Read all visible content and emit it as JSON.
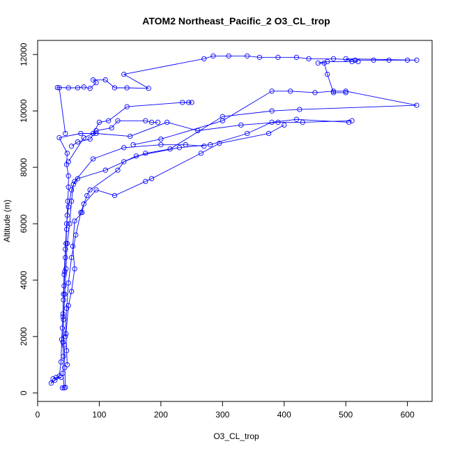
{
  "chart_data": {
    "type": "scatter",
    "title": "ATOM2 Northeast_Pacific_2 O3_CL_trop",
    "xlabel": "O3_CL_trop",
    "ylabel": "Altitude (m)",
    "xlim": [
      0,
      640
    ],
    "ylim": [
      -300,
      12500
    ],
    "xticks": [
      0,
      100,
      200,
      300,
      400,
      500,
      600
    ],
    "yticks": [
      0,
      2000,
      4000,
      6000,
      8000,
      10000,
      12000
    ],
    "grid": false,
    "legend": "none",
    "marker": "open-circle",
    "lines_connect_points": true,
    "series_color": "#0000ff",
    "series": [
      {
        "points": [
          [
            40,
            180
          ],
          [
            43,
            180
          ],
          [
            41,
            700
          ],
          [
            42,
            1300
          ],
          [
            41,
            1800
          ],
          [
            40,
            2300
          ],
          [
            41,
            2800
          ],
          [
            42,
            3300
          ],
          [
            43,
            3800
          ],
          [
            44,
            4300
          ],
          [
            45,
            4800
          ],
          [
            46,
            5300
          ],
          [
            47,
            5800
          ],
          [
            48,
            6300
          ],
          [
            49,
            6800
          ],
          [
            50,
            7300
          ],
          [
            50,
            7700
          ],
          [
            47,
            8100
          ],
          [
            48,
            8500
          ],
          [
            35,
            9050
          ],
          [
            70,
            9200
          ],
          [
            95,
            9200
          ],
          [
            150,
            9100
          ],
          [
            210,
            9600
          ],
          [
            260,
            9300
          ],
          [
            330,
            9500
          ],
          [
            390,
            9600
          ],
          [
            430,
            9600
          ],
          [
            510,
            9650
          ]
        ]
      },
      {
        "points": [
          [
            45,
            200
          ],
          [
            44,
            900
          ],
          [
            43,
            1700
          ],
          [
            42,
            2600
          ],
          [
            44,
            3500
          ],
          [
            46,
            4400
          ],
          [
            48,
            5300
          ],
          [
            52,
            6000
          ],
          [
            55,
            6800
          ],
          [
            58,
            7400
          ],
          [
            65,
            7600
          ],
          [
            110,
            7900
          ],
          [
            160,
            8400
          ],
          [
            230,
            8700
          ],
          [
            280,
            8800
          ],
          [
            340,
            9200
          ],
          [
            380,
            9600
          ],
          [
            420,
            9700
          ],
          [
            505,
            9600
          ]
        ]
      },
      {
        "points": [
          [
            38,
            550
          ],
          [
            30,
            550
          ],
          [
            25,
            500
          ],
          [
            22,
            350
          ],
          [
            28,
            450
          ],
          [
            35,
            600
          ],
          [
            38,
            1100
          ],
          [
            39,
            1900
          ],
          [
            41,
            2700
          ],
          [
            42,
            3500
          ],
          [
            43,
            4200
          ],
          [
            45,
            5100
          ],
          [
            47,
            6000
          ],
          [
            50,
            6600
          ],
          [
            55,
            7200
          ],
          [
            60,
            7500
          ],
          [
            90,
            8300
          ],
          [
            140,
            8700
          ],
          [
            200,
            8800
          ],
          [
            240,
            8800
          ],
          [
            270,
            8750
          ]
        ]
      },
      {
        "points": [
          [
            48,
            1000
          ],
          [
            47,
            1500
          ],
          [
            46,
            2100
          ],
          [
            50,
            3100
          ],
          [
            55,
            3600
          ],
          [
            60,
            4400
          ],
          [
            57,
            5200
          ],
          [
            60,
            6100
          ],
          [
            72,
            6400
          ],
          [
            75,
            6700
          ],
          [
            95,
            7200
          ],
          [
            125,
            7000
          ],
          [
            175,
            7500
          ],
          [
            185,
            7600
          ],
          [
            265,
            8500
          ],
          [
            295,
            8850
          ],
          [
            375,
            9200
          ],
          [
            400,
            9500
          ]
        ]
      },
      {
        "points": [
          [
            45,
            2000
          ],
          [
            47,
            3000
          ],
          [
            50,
            3900
          ],
          [
            55,
            4800
          ],
          [
            62,
            5600
          ],
          [
            70,
            6400
          ],
          [
            80,
            7000
          ],
          [
            85,
            7200
          ],
          [
            130,
            7900
          ],
          [
            140,
            8200
          ],
          [
            175,
            8500
          ],
          [
            215,
            8650
          ],
          [
            300,
            9800
          ],
          [
            380,
            10000
          ],
          [
            425,
            10050
          ],
          [
            615,
            10200
          ],
          [
            500,
            10700
          ],
          [
            480,
            10700
          ],
          [
            450,
            10650
          ],
          [
            410,
            10700
          ],
          [
            380,
            10700
          ],
          [
            300,
            9650
          ],
          [
            200,
            9000
          ],
          [
            155,
            8800
          ]
        ]
      },
      {
        "points": [
          [
            50,
            8200
          ],
          [
            75,
            9050
          ],
          [
            90,
            9200
          ],
          [
            100,
            9600
          ],
          [
            115,
            9650
          ],
          [
            145,
            10150
          ],
          [
            235,
            10300
          ],
          [
            245,
            10300
          ],
          [
            250,
            10300
          ]
        ]
      },
      {
        "points": [
          [
            55,
            8750
          ],
          [
            65,
            8900
          ],
          [
            85,
            9000
          ],
          [
            95,
            9300
          ],
          [
            120,
            9400
          ],
          [
            130,
            9650
          ],
          [
            175,
            9650
          ],
          [
            185,
            9600
          ],
          [
            195,
            9600
          ]
        ]
      },
      {
        "points": [
          [
            45,
            9200
          ],
          [
            35,
            10820
          ],
          [
            32,
            10830
          ],
          [
            50,
            10820
          ],
          [
            65,
            10820
          ],
          [
            75,
            10850
          ],
          [
            85,
            10800
          ],
          [
            95,
            11000
          ],
          [
            90,
            11100
          ],
          [
            110,
            11100
          ],
          [
            125,
            10820
          ],
          [
            145,
            10820
          ],
          [
            180,
            10800
          ],
          [
            140,
            11300
          ],
          [
            270,
            11850
          ],
          [
            285,
            11950
          ],
          [
            310,
            11950
          ],
          [
            340,
            11950
          ],
          [
            360,
            11900
          ],
          [
            390,
            11900
          ],
          [
            420,
            11900
          ],
          [
            440,
            11850
          ],
          [
            480,
            11850
          ],
          [
            515,
            11800
          ],
          [
            545,
            11800
          ],
          [
            570,
            11800
          ],
          [
            600,
            11800
          ],
          [
            615,
            11800
          ],
          [
            500,
            11850
          ],
          [
            510,
            11750
          ],
          [
            520,
            11750
          ],
          [
            470,
            11750
          ],
          [
            455,
            11700
          ],
          [
            465,
            11700
          ],
          [
            470,
            11300
          ],
          [
            480,
            10650
          ],
          [
            500,
            10650
          ]
        ]
      }
    ]
  }
}
